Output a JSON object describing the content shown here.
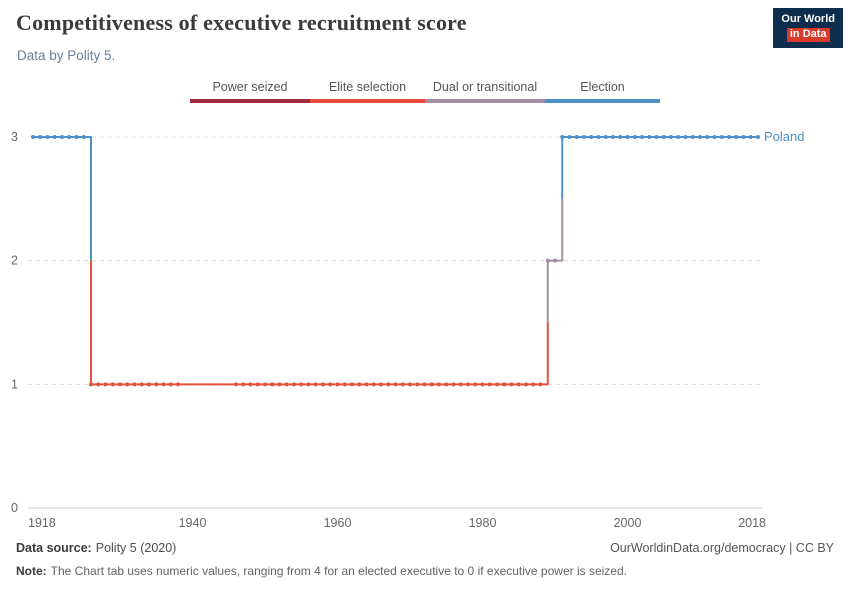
{
  "header": {
    "title": "Competitiveness of executive recruitment score",
    "subtitle": "Data by Polity 5.",
    "logo": {
      "line1": "Our World",
      "line2": "in Data",
      "bg_color": "#0d2d4e",
      "accent_color": "#d93a2b"
    }
  },
  "chart_data": {
    "type": "line",
    "title": "Competitiveness of executive recruitment score",
    "subtitle": "Data by Polity 5.",
    "entity": "Poland",
    "x": {
      "label": "",
      "min": 1918,
      "max": 2018,
      "ticks": [
        1918,
        1940,
        1960,
        1980,
        2000,
        2018
      ]
    },
    "y": {
      "label": "",
      "min": 0,
      "max": 3,
      "ticks": [
        0,
        1,
        2,
        3
      ]
    },
    "grid": "dashed-horizontal",
    "legend": {
      "position": "top",
      "items": [
        {
          "label": "Power seized",
          "color": "#a12a43"
        },
        {
          "label": "Elite selection",
          "color": "#e4503b"
        },
        {
          "label": "Dual or transitional",
          "color": "#a48ea1"
        },
        {
          "label": "Election",
          "color": "#4e91c9"
        }
      ]
    },
    "category_colors": {
      "Power seized": "#a12a43",
      "Elite selection": "#e4503b",
      "Dual or transitional": "#a48ea1",
      "Election": "#4e91c9"
    },
    "series": [
      {
        "name": "Poland",
        "segments": [
          {
            "start": 1918,
            "end": 1925,
            "value": 3,
            "category": "Election"
          },
          {
            "start": 1926,
            "end": 1988,
            "value": 1,
            "category": "Elite selection"
          },
          {
            "start": 1989,
            "end": 1990,
            "value": 2,
            "category": "Dual or transitional"
          },
          {
            "start": 1991,
            "end": 2018,
            "value": 3,
            "category": "Election"
          }
        ],
        "marker_gap": {
          "from": 1939,
          "to": 1945
        }
      }
    ]
  },
  "footer": {
    "source_label": "Data source:",
    "source_value": "Polity 5 (2020)",
    "credit_link": "OurWorldinData.org/democracy",
    "credit_license": "| CC BY",
    "note_label": "Note:",
    "note_text": "The Chart tab uses numeric values, ranging from 4 for an elected executive to 0 if executive power is seized."
  }
}
